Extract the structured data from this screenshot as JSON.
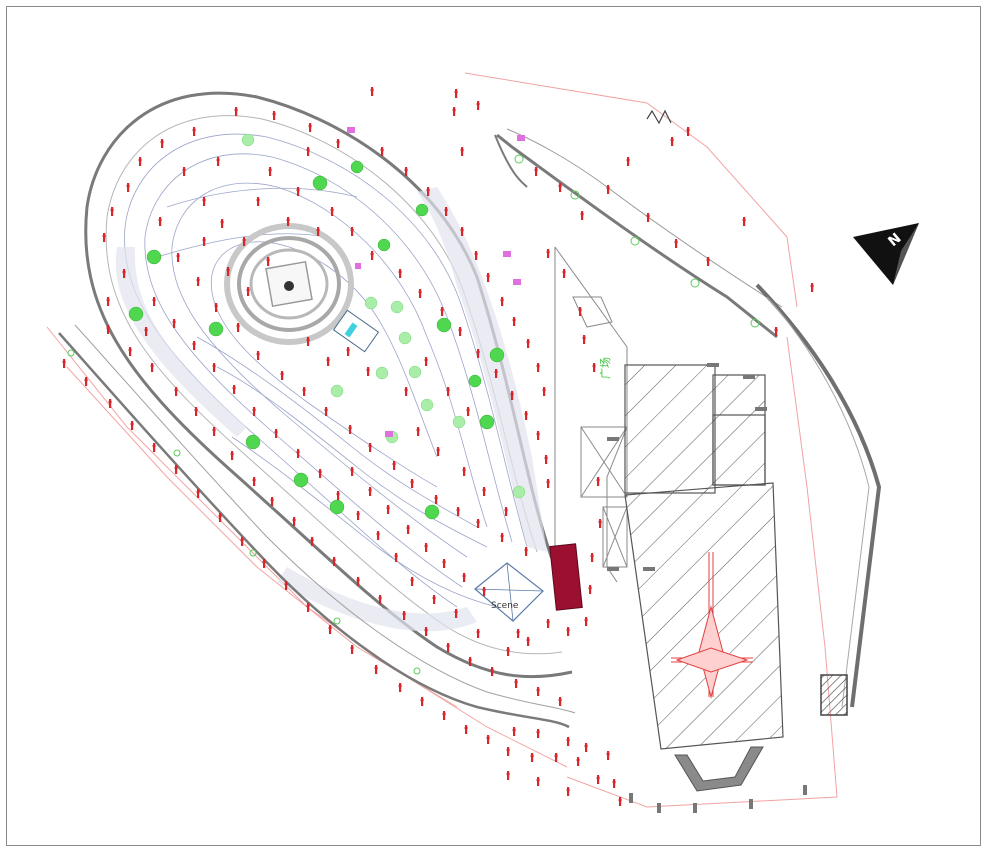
{
  "plan": {
    "labels": {
      "zone_label": "Scene",
      "vertical_label": "广场",
      "north_letter": "N"
    },
    "colors": {
      "tree_fill": "#4fd84f",
      "tree_light": "#a8eea8",
      "red_marker": "#d8262a",
      "boundary_pink": "#f2a3a3",
      "contour": "#9aa4c8",
      "block_fill": "#9b1030",
      "hatch": "#555555",
      "road_dark": "#6f6f6f"
    },
    "icons": [
      "north-arrow-icon",
      "cross-symbol-icon"
    ]
  }
}
